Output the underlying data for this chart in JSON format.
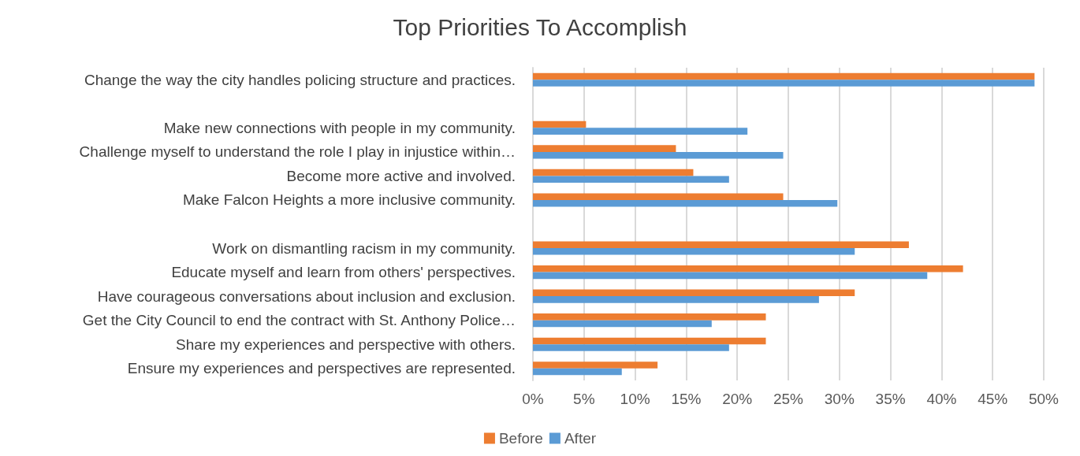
{
  "chart_data": {
    "type": "bar",
    "orientation": "horizontal",
    "title": "Top Priorities To Accomplish",
    "categories": [
      "Change the way the city handles policing structure and practices.",
      null,
      "Make new connections with people in my community.",
      "Challenge myself to understand the role I play in injustice within…",
      "Become more active and involved.",
      "Make Falcon Heights a more inclusive community.",
      null,
      "Work on dismantling racism in my community.",
      "Educate myself and learn from others' perspectives.",
      "Have courageous conversations about inclusion and exclusion.",
      "Get the City Council to end the contract with St. Anthony Police…",
      "Share my experiences and perspective with others.",
      "Ensure my experiences and perspectives are represented."
    ],
    "series": [
      {
        "name": "Before",
        "color": "#ed7d31",
        "values": [
          49.1,
          null,
          5.2,
          14.0,
          15.7,
          24.5,
          null,
          36.8,
          42.1,
          31.5,
          22.8,
          22.8,
          12.2
        ]
      },
      {
        "name": "After",
        "color": "#5b9bd5",
        "values": [
          49.1,
          null,
          21.0,
          24.5,
          19.2,
          29.8,
          null,
          31.5,
          38.6,
          28.0,
          17.5,
          19.2,
          8.7
        ]
      }
    ],
    "xlim": [
      0,
      50
    ],
    "xticks": [
      {
        "value": 0,
        "label": "0%"
      },
      {
        "value": 5,
        "label": "5%"
      },
      {
        "value": 10,
        "label": "10%"
      },
      {
        "value": 15,
        "label": "15%"
      },
      {
        "value": 20,
        "label": "20%"
      },
      {
        "value": 25,
        "label": "25%"
      },
      {
        "value": 30,
        "label": "30%"
      },
      {
        "value": 35,
        "label": "35%"
      },
      {
        "value": 40,
        "label": "40%"
      },
      {
        "value": 45,
        "label": "45%"
      },
      {
        "value": 50,
        "label": "50%"
      }
    ],
    "grid": "x",
    "legend": "bottom"
  }
}
